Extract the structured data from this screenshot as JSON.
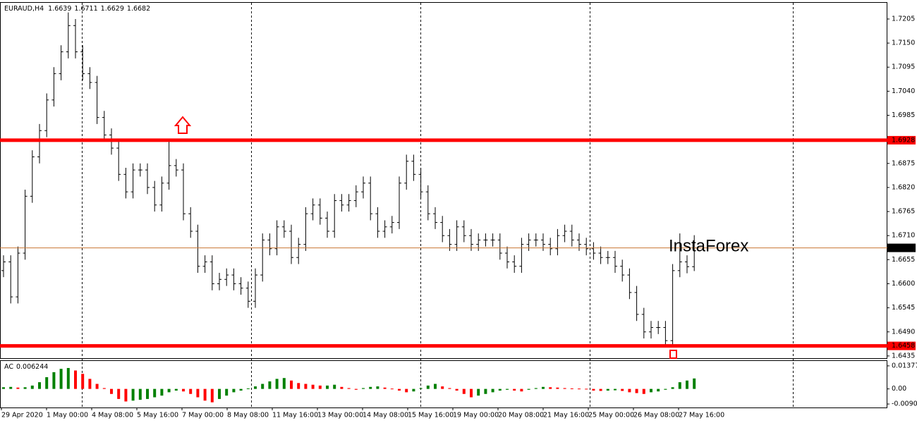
{
  "chart_data": [
    {
      "type": "ohlc",
      "title": "EURAUD,H4",
      "watermark": "InstaForex",
      "color": "#000000",
      "level_color": "#ff0000",
      "last_color": "#c87533",
      "open": [
        1.663,
        1.665,
        1.657,
        1.667,
        1.68,
        1.689,
        1.695,
        1.702,
        1.708,
        1.713,
        1.719,
        1.713,
        1.708,
        1.706,
        1.698,
        1.694,
        1.691,
        1.685,
        1.681,
        1.686,
        1.686,
        1.682,
        1.678,
        1.683,
        1.687,
        1.686,
        1.676,
        1.672,
        1.664,
        1.665,
        1.66,
        1.661,
        1.662,
        1.66,
        1.659,
        1.656,
        1.662,
        1.67,
        1.668,
        1.673,
        1.672,
        1.666,
        1.669,
        1.676,
        1.678,
        1.675,
        1.672,
        1.679,
        1.678,
        1.679,
        1.681,
        1.683,
        1.676,
        1.672,
        1.673,
        1.674,
        1.683,
        1.688,
        1.685,
        1.681,
        1.676,
        1.674,
        1.671,
        1.669,
        1.673,
        1.671,
        1.669,
        1.67,
        1.67,
        1.67,
        1.667,
        1.665,
        1.664,
        1.669,
        1.67,
        1.67,
        1.669,
        1.668,
        1.671,
        1.672,
        1.67,
        1.669,
        1.668,
        1.667,
        1.666,
        1.666,
        1.664,
        1.662,
        1.658,
        1.653,
        1.649,
        1.65,
        1.65,
        1.647,
        1.663,
        1.665,
        1.6639
      ],
      "high": [
        1.6665,
        1.6665,
        1.6685,
        1.6815,
        1.6905,
        1.6965,
        1.7035,
        1.7095,
        1.7145,
        1.722,
        1.7205,
        1.7145,
        1.7095,
        1.7075,
        1.6995,
        1.6955,
        1.6925,
        1.6865,
        1.6875,
        1.6875,
        1.6875,
        1.6835,
        1.6845,
        1.6928,
        1.6885,
        1.6875,
        1.6775,
        1.6735,
        1.6665,
        1.6665,
        1.6625,
        1.6635,
        1.6635,
        1.6615,
        1.6605,
        1.6635,
        1.6715,
        1.6715,
        1.6745,
        1.6745,
        1.6735,
        1.6705,
        1.6775,
        1.6795,
        1.6795,
        1.6765,
        1.6805,
        1.6805,
        1.6805,
        1.6825,
        1.6845,
        1.6845,
        1.6775,
        1.6745,
        1.6755,
        1.6845,
        1.6895,
        1.6895,
        1.6865,
        1.6825,
        1.6775,
        1.6755,
        1.6725,
        1.6745,
        1.6745,
        1.6725,
        1.6715,
        1.6715,
        1.6715,
        1.6715,
        1.6685,
        1.6665,
        1.6705,
        1.6715,
        1.6715,
        1.6715,
        1.6705,
        1.6725,
        1.6735,
        1.6735,
        1.6715,
        1.6705,
        1.6695,
        1.6685,
        1.6675,
        1.6675,
        1.6655,
        1.6635,
        1.6595,
        1.6545,
        1.6515,
        1.6515,
        1.6515,
        1.6645,
        1.6715,
        1.6665,
        1.6711
      ],
      "low": [
        1.6615,
        1.6555,
        1.6555,
        1.6655,
        1.6785,
        1.6875,
        1.6935,
        1.7005,
        1.7065,
        1.7115,
        1.7115,
        1.7065,
        1.7045,
        1.6965,
        1.6925,
        1.6895,
        1.6835,
        1.6795,
        1.6795,
        1.6845,
        1.6805,
        1.6765,
        1.6765,
        1.6815,
        1.6845,
        1.6745,
        1.6705,
        1.6625,
        1.6625,
        1.6585,
        1.6585,
        1.6595,
        1.6585,
        1.6575,
        1.6545,
        1.6545,
        1.6605,
        1.6665,
        1.6665,
        1.6705,
        1.6645,
        1.6645,
        1.6675,
        1.6745,
        1.6735,
        1.6705,
        1.6705,
        1.6765,
        1.6765,
        1.6775,
        1.6795,
        1.6745,
        1.6705,
        1.6705,
        1.6715,
        1.6725,
        1.6815,
        1.6835,
        1.6795,
        1.6745,
        1.6725,
        1.6695,
        1.6675,
        1.6675,
        1.6695,
        1.6675,
        1.6675,
        1.6685,
        1.6685,
        1.6655,
        1.6635,
        1.6625,
        1.6625,
        1.6675,
        1.6685,
        1.6675,
        1.6665,
        1.6665,
        1.6695,
        1.6685,
        1.6675,
        1.6665,
        1.6655,
        1.6645,
        1.6645,
        1.6625,
        1.6605,
        1.6565,
        1.6515,
        1.6475,
        1.6475,
        1.6485,
        1.6458,
        1.6455,
        1.6615,
        1.6624,
        1.6629
      ],
      "close": [
        1.665,
        1.657,
        1.667,
        1.68,
        1.689,
        1.695,
        1.702,
        1.708,
        1.713,
        1.719,
        1.713,
        1.708,
        1.706,
        1.698,
        1.694,
        1.691,
        1.685,
        1.681,
        1.686,
        1.686,
        1.682,
        1.678,
        1.683,
        1.687,
        1.686,
        1.676,
        1.672,
        1.664,
        1.665,
        1.66,
        1.661,
        1.662,
        1.66,
        1.659,
        1.656,
        1.662,
        1.67,
        1.668,
        1.673,
        1.672,
        1.666,
        1.669,
        1.676,
        1.678,
        1.675,
        1.672,
        1.679,
        1.678,
        1.679,
        1.681,
        1.683,
        1.676,
        1.672,
        1.673,
        1.674,
        1.683,
        1.688,
        1.685,
        1.681,
        1.676,
        1.674,
        1.671,
        1.669,
        1.673,
        1.671,
        1.669,
        1.67,
        1.67,
        1.67,
        1.667,
        1.665,
        1.664,
        1.669,
        1.67,
        1.67,
        1.669,
        1.668,
        1.671,
        1.672,
        1.67,
        1.669,
        1.668,
        1.667,
        1.666,
        1.666,
        1.664,
        1.662,
        1.658,
        1.653,
        1.649,
        1.65,
        1.65,
        1.647,
        1.663,
        1.665,
        1.6639,
        1.6682
      ],
      "levels": [
        1.6928,
        1.6458
      ],
      "ylim": [
        1.643,
        1.7242
      ],
      "yticks": [
        1.7205,
        {
          "value": 1.715,
          "label": "1.7150"
        },
        1.7095,
        {
          "value": 1.704,
          "label": "1.7040"
        },
        1.6985,
        1.6875,
        {
          "value": 1.682,
          "label": "1.6820"
        },
        1.6765,
        {
          "value": 1.671,
          "label": "1.6710"
        },
        1.6655,
        {
          "value": 1.66,
          "label": "1.6600"
        },
        1.6545,
        {
          "value": 1.649,
          "label": "1.6490"
        },
        1.6435
      ],
      "x_labels": [
        "29 Apr 2020",
        "1 May 00:00",
        "4 May 08:00",
        "5 May 16:00",
        "7 May 00:00",
        "8 May 08:00",
        "11 May 16:00",
        "13 May 00:00",
        "14 May 08:00",
        "15 May 16:00",
        "19 May 00:00",
        "20 May 08:00",
        "21 May 16:00",
        "25 May 00:00",
        "26 May 08:00",
        "27 May 16:00"
      ]
    },
    {
      "type": "ac",
      "title": "AC",
      "up_color": "#008000",
      "down_color": "#ff0000",
      "values": [
        0.001,
        0.0012,
        0.0008,
        0.001,
        0.002,
        0.004,
        0.007,
        0.01,
        0.012,
        0.0125,
        0.011,
        0.009,
        0.006,
        0.003,
        0.0005,
        -0.003,
        -0.006,
        -0.0075,
        -0.007,
        -0.0065,
        -0.006,
        -0.005,
        -0.004,
        -0.002,
        -0.001,
        -0.0015,
        -0.003,
        -0.005,
        -0.007,
        -0.008,
        -0.006,
        -0.004,
        -0.002,
        -0.001,
        0.0003,
        0.0015,
        0.003,
        0.0045,
        0.006,
        0.0065,
        0.005,
        0.0035,
        0.003,
        0.0025,
        0.002,
        0.002,
        0.0025,
        0.0012,
        0.0005,
        -0.0005,
        0.0005,
        0.0012,
        0.0015,
        0.0008,
        0.0002,
        -0.001,
        -0.002,
        -0.0015,
        0.0005,
        0.002,
        0.003,
        0.0015,
        0.0005,
        -0.001,
        -0.003,
        -0.005,
        -0.004,
        -0.003,
        -0.002,
        -0.001,
        -0.0005,
        -0.001,
        -0.0015,
        -0.0005,
        0.0005,
        0.0012,
        0.001,
        0.0008,
        0.0005,
        0.0003,
        0.0002,
        0.0001,
        -0.001,
        -0.0012,
        -0.001,
        -0.0008,
        -0.0012,
        -0.002,
        -0.0025,
        -0.003,
        -0.002,
        -0.0015,
        -0.0005,
        0.001,
        0.004,
        0.005,
        0.006244
      ],
      "ylim": [
        -0.0111,
        0.0167
      ],
      "yticks": [
        0.01377,
        {
          "value": 0,
          "label": "0.00"
        },
        -0.00902
      ]
    }
  ]
}
